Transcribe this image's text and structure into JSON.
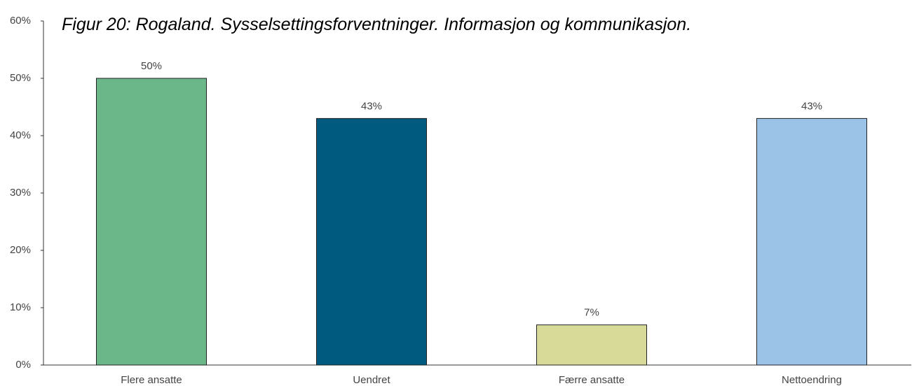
{
  "chart_data": {
    "type": "bar",
    "title": "Figur 20: Rogaland. Sysselsettingsforventninger. Informasjon og kommunikasjon.",
    "categories": [
      "Flere ansatte",
      "Uendret",
      "Færre ansatte",
      "Nettoendring"
    ],
    "values": [
      50,
      43,
      7,
      43
    ],
    "value_labels": [
      "50%",
      "43%",
      "7%",
      "43%"
    ],
    "colors": [
      "#6bb78a",
      "#005a80",
      "#d8db98",
      "#9bc3e8"
    ],
    "ylim": [
      0,
      60
    ],
    "yticks": [
      {
        "value": 0,
        "label": "0%"
      },
      {
        "value": 10,
        "label": "10%"
      },
      {
        "value": 20,
        "label": "20%"
      },
      {
        "value": 30,
        "label": "30%"
      },
      {
        "value": 40,
        "label": "40%"
      },
      {
        "value": 50,
        "label": "50%"
      },
      {
        "value": 60,
        "label": "60%"
      }
    ],
    "grid": false
  }
}
